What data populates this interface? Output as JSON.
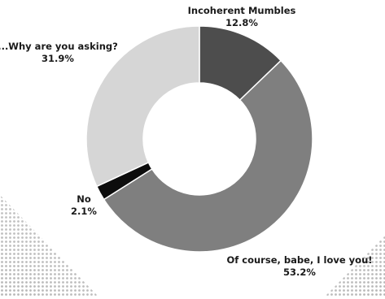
{
  "chart_data": {
    "type": "pie",
    "variant": "donut",
    "title": "",
    "slices": [
      {
        "label": "Incoherent Mumbles",
        "value": 12.8,
        "display": "12.8%",
        "color": "#4d4d4d"
      },
      {
        "label": "Of course, babe, I love you!",
        "value": 53.2,
        "display": "53.2%",
        "color": "#7f7f7f"
      },
      {
        "label": "No",
        "value": 2.1,
        "display": "2.1%",
        "color": "#0d0d0d"
      },
      {
        "label": "...Why are you asking?",
        "value": 31.9,
        "display": "31.9%",
        "color": "#d6d6d6"
      }
    ],
    "start_angle": "12 o'clock",
    "direction": "clockwise",
    "legend": "none",
    "labels": "outside"
  }
}
